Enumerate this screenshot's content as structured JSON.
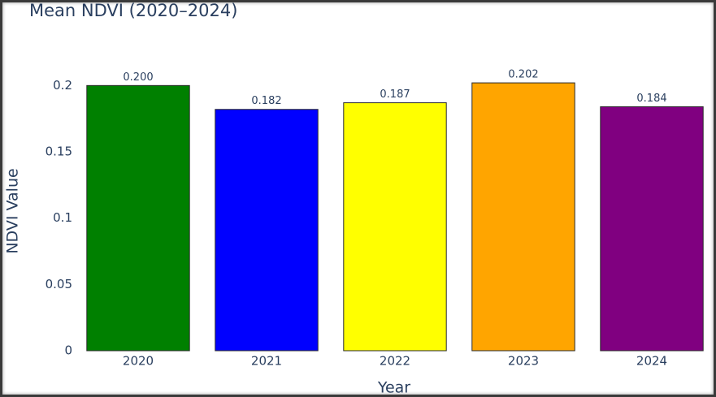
{
  "chart_data": {
    "type": "bar",
    "title": "Mean NDVI (2020–2024)",
    "x_label": "Year",
    "y_label": "NDVI Value",
    "categories": [
      "2020",
      "2021",
      "2022",
      "2023",
      "2024"
    ],
    "values": [
      0.2,
      0.182,
      0.187,
      0.202,
      0.184
    ],
    "value_labels": [
      "0.200",
      "0.182",
      "0.187",
      "0.202",
      "0.184"
    ],
    "colors": [
      "#008000",
      "#0000ff",
      "#ffff00",
      "#ffa500",
      "#800080"
    ],
    "ylim": [
      0,
      0.21
    ],
    "yticks": [
      0,
      0.05,
      0.1,
      0.15,
      0.2
    ],
    "grid": false
  }
}
